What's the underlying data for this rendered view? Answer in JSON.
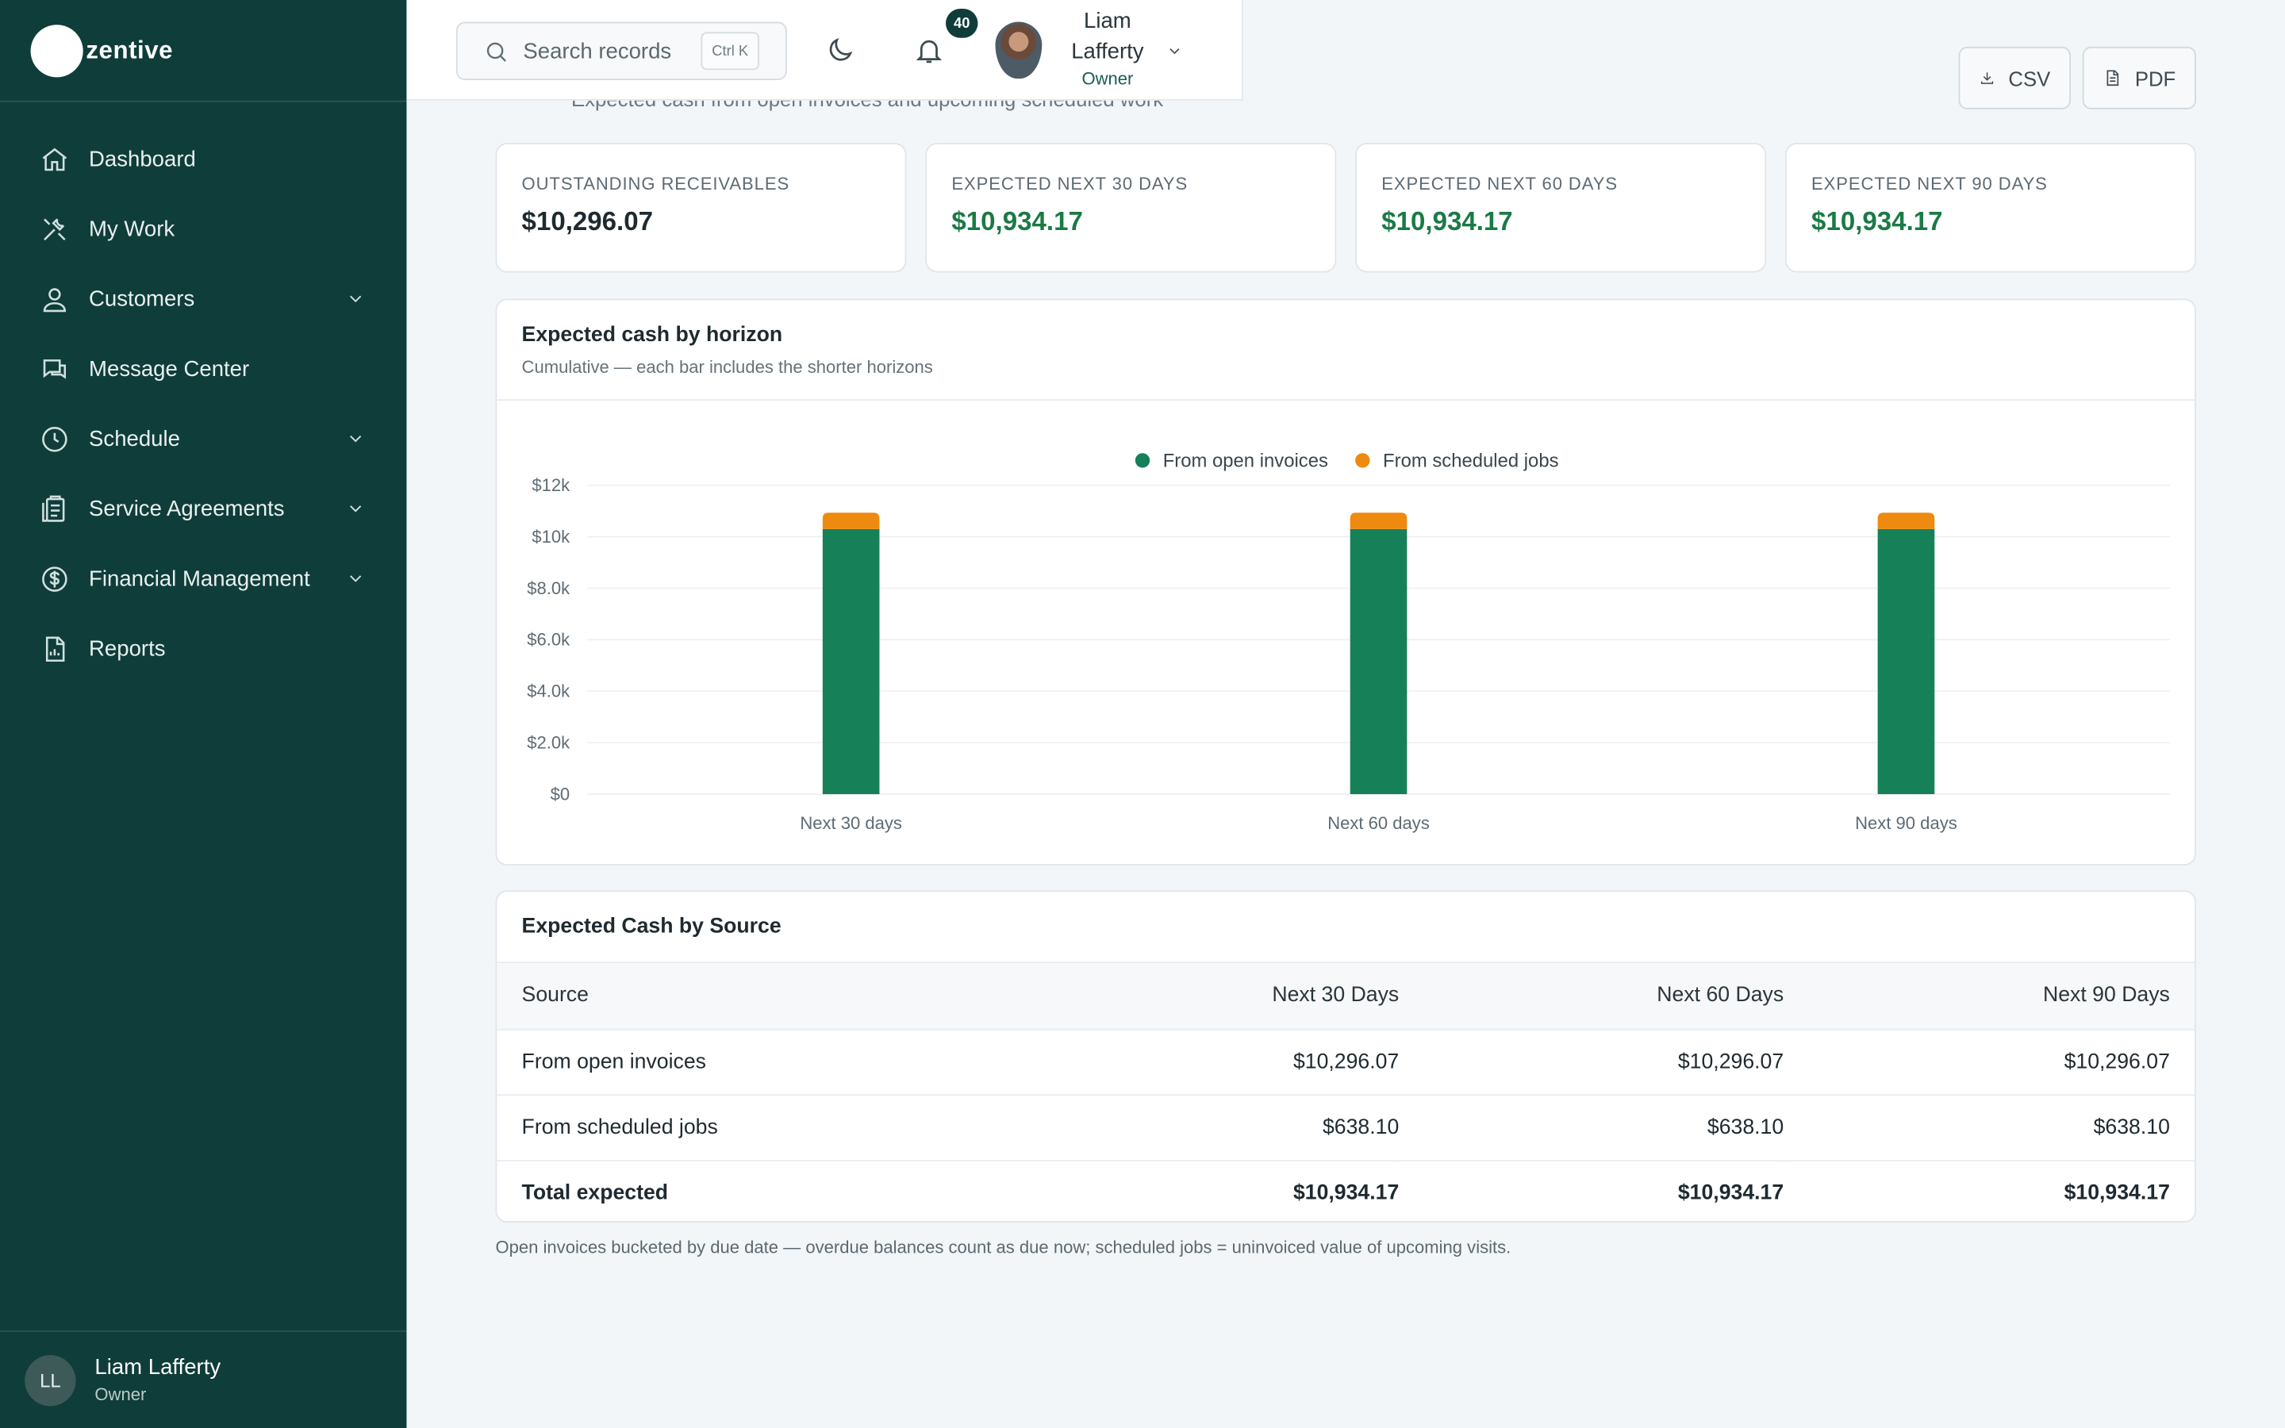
{
  "brand": {
    "name": "zentive"
  },
  "sidebar": {
    "items": [
      {
        "label": "Dashboard",
        "icon": "home-icon",
        "expandable": false
      },
      {
        "label": "My Work",
        "icon": "tools-icon",
        "expandable": false
      },
      {
        "label": "Customers",
        "icon": "users-icon",
        "expandable": true
      },
      {
        "label": "Message Center",
        "icon": "chat-icon",
        "expandable": false
      },
      {
        "label": "Schedule",
        "icon": "clock-icon",
        "expandable": true
      },
      {
        "label": "Service Agreements",
        "icon": "clipboard-icon",
        "expandable": true
      },
      {
        "label": "Financial Management",
        "icon": "dollar-icon",
        "expandable": true
      },
      {
        "label": "Reports",
        "icon": "report-icon",
        "expandable": false
      }
    ],
    "user": {
      "initials": "LL",
      "name": "Liam Lafferty",
      "role": "Owner"
    }
  },
  "topbar": {
    "search_placeholder": "Search records",
    "search_shortcut": "Ctrl K",
    "notification_count": "40",
    "user_first": "Liam",
    "user_last": "Lafferty",
    "user_role": "Owner"
  },
  "page": {
    "subtitle": "Expected cash from open invoices and upcoming scheduled work"
  },
  "actions": {
    "csv": "CSV",
    "pdf": "PDF"
  },
  "kpis": [
    {
      "label": "OUTSTANDING RECEIVABLES",
      "value": "$10,296.07"
    },
    {
      "label": "EXPECTED NEXT 30 DAYS",
      "value": "$10,934.17"
    },
    {
      "label": "EXPECTED NEXT 60 DAYS",
      "value": "$10,934.17"
    },
    {
      "label": "EXPECTED NEXT 90 DAYS",
      "value": "$10,934.17"
    }
  ],
  "chart_card": {
    "title": "Expected cash by horizon",
    "subtitle": "Cumulative — each bar includes the shorter horizons"
  },
  "chart_data": {
    "type": "bar",
    "stacked": true,
    "categories": [
      "Next 30 days",
      "Next 60 days",
      "Next 90 days"
    ],
    "series": [
      {
        "name": "From open invoices",
        "values": [
          10296.07,
          10296.07,
          10296.07
        ],
        "color": "#168059"
      },
      {
        "name": "From scheduled jobs",
        "values": [
          638.1,
          638.1,
          638.1
        ],
        "color": "#ee8a0f"
      }
    ],
    "ylim": [
      0,
      12000
    ],
    "yticks": [
      0,
      2000,
      4000,
      6000,
      8000,
      10000,
      12000
    ],
    "ytick_labels": [
      "$0",
      "$2.0k",
      "$4.0k",
      "$6.0k",
      "$8.0k",
      "$10k",
      "$12k"
    ],
    "legend": "top-center",
    "grid": true
  },
  "table": {
    "title": "Expected Cash by Source",
    "columns": [
      "Source",
      "Next 30 Days",
      "Next 60 Days",
      "Next 90 Days"
    ],
    "rows": [
      [
        "From open invoices",
        "$10,296.07",
        "$10,296.07",
        "$10,296.07"
      ],
      [
        "From scheduled jobs",
        "$638.10",
        "$638.10",
        "$638.10"
      ],
      [
        "Total expected",
        "$10,934.17",
        "$10,934.17",
        "$10,934.17"
      ]
    ]
  },
  "footnote": "Open invoices bucketed by due date — overdue balances count as due now; scheduled jobs = uninvoiced value of upcoming visits."
}
